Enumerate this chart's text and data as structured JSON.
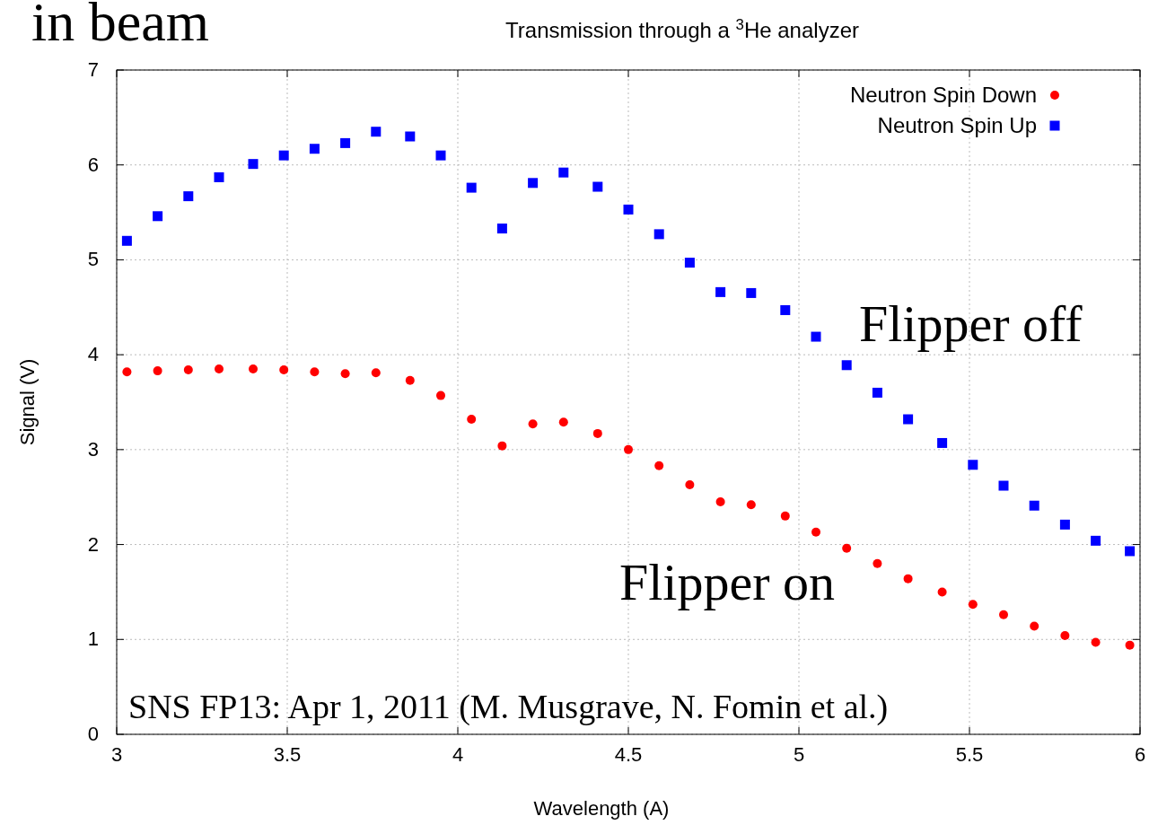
{
  "chart_data": {
    "type": "scatter",
    "title": "Transmission through a $^{3}$He analyzer",
    "xlabel": "Wavelength (A)",
    "ylabel": "Signal (V)",
    "x": [
      3.03,
      3.12,
      3.21,
      3.3,
      3.4,
      3.49,
      3.58,
      3.67,
      3.76,
      3.86,
      3.95,
      4.04,
      4.13,
      4.22,
      4.31,
      4.41,
      4.5,
      4.59,
      4.68,
      4.77,
      4.86,
      4.96,
      5.05,
      5.14,
      5.23,
      5.32,
      5.42,
      5.51,
      5.6,
      5.69,
      5.78,
      5.87,
      5.97
    ],
    "series": [
      {
        "name": "Neutron Spin Down",
        "color": "#ff0000",
        "marker": "circle",
        "values": [
          3.82,
          3.83,
          3.84,
          3.85,
          3.85,
          3.84,
          3.82,
          3.8,
          3.81,
          3.73,
          3.57,
          3.32,
          3.04,
          3.27,
          3.29,
          3.17,
          3.0,
          2.83,
          2.63,
          2.45,
          2.42,
          2.3,
          2.13,
          1.96,
          1.8,
          1.64,
          1.5,
          1.37,
          1.26,
          1.14,
          1.04,
          0.97,
          0.94
        ]
      },
      {
        "name": "Neutron Spin Up",
        "color": "#0000ff",
        "marker": "square",
        "values": [
          5.2,
          5.46,
          5.67,
          5.87,
          6.01,
          6.1,
          6.17,
          6.23,
          6.35,
          6.3,
          6.1,
          5.76,
          5.33,
          5.81,
          5.92,
          5.77,
          5.53,
          5.27,
          4.97,
          4.66,
          4.65,
          4.47,
          4.19,
          3.89,
          3.6,
          3.32,
          3.07,
          2.84,
          2.62,
          2.41,
          2.21,
          2.04,
          1.93
        ]
      }
    ],
    "xlim": [
      3,
      6
    ],
    "xticks": [
      3,
      3.5,
      4,
      4.5,
      5,
      5.5,
      6
    ],
    "ylim": [
      0,
      7
    ],
    "yticks": [
      0,
      1,
      2,
      3,
      4,
      5,
      6,
      7
    ],
    "grid": true,
    "legend": "top right",
    "annotations": [
      "in beam",
      "SNS FP13: Apr 1, 2011 (M. Musgrave, N. Fomin et al.)",
      "Flipper off",
      "Flipper on"
    ]
  }
}
